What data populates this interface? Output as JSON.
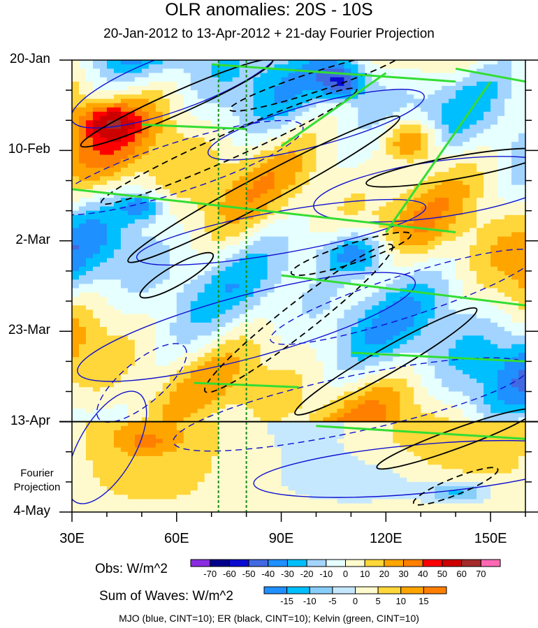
{
  "chart_data": {
    "type": "heatmap",
    "title": "OLR anomalies: 20S - 10S",
    "subtitle": "20-Jan-2012 to 13-Apr-2012 + 21-day Fourier Projection",
    "x_axis": {
      "range": [
        30,
        160
      ],
      "ticks": [
        30,
        60,
        90,
        120,
        150
      ],
      "tick_labels": [
        "30E",
        "60E",
        "90E",
        "120E",
        "150E"
      ]
    },
    "y_axis": {
      "ticks": [
        "20-Jan",
        "10-Feb",
        "2-Mar",
        "23-Mar",
        "13-Apr",
        "4-May"
      ],
      "days": [
        0,
        21,
        42,
        63,
        84,
        105
      ],
      "inverted": true
    },
    "projection_start_day": 84,
    "projection_label": [
      "Fourier",
      "Projection"
    ],
    "reference_lines_lon": [
      72,
      80
    ],
    "obs_colorbar": {
      "label": "Obs: W/m^2",
      "levels": [
        -70,
        -60,
        -50,
        -40,
        -30,
        -20,
        -10,
        0,
        10,
        20,
        30,
        40,
        50,
        60,
        70
      ],
      "colors": [
        "#8a2be2",
        "#00008b",
        "#0a0ad2",
        "#4169e1",
        "#1e90ff",
        "#00bfff",
        "#a3d4ff",
        "#e6ffff",
        "#fffacd",
        "#ffd73a",
        "#ffa500",
        "#ff7f00",
        "#ff0000",
        "#cd0000",
        "#a52a2a",
        "#ff69b4"
      ]
    },
    "sum_colorbar": {
      "label": "Sum of Waves: W/m^2",
      "levels": [
        -15,
        -10,
        -5,
        0,
        5,
        10,
        15
      ],
      "colors": [
        "#1e90ff",
        "#00bfff",
        "#87cefa",
        "#c6e8ff",
        "#fffacd",
        "#ffd73a",
        "#ffa500",
        "#ff7f00"
      ]
    },
    "footnote": "MJO (blue, CINT=10); ER (black, CINT=10); Kelvin (green, CINT=10)",
    "wave_colors": {
      "mjo": "#1010d0",
      "er": "#000000",
      "kelvin": "#33dd33"
    }
  }
}
